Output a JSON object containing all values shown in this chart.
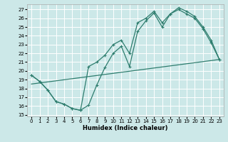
{
  "xlabel": "Humidex (Indice chaleur)",
  "bg_color": "#cce8e8",
  "grid_color": "#ffffff",
  "line_color": "#2e7d6e",
  "xlim": [
    -0.5,
    23.5
  ],
  "ylim": [
    14.8,
    27.6
  ],
  "xticks": [
    0,
    1,
    2,
    3,
    4,
    5,
    6,
    7,
    8,
    9,
    10,
    11,
    12,
    13,
    14,
    15,
    16,
    17,
    18,
    19,
    20,
    21,
    22,
    23
  ],
  "yticks": [
    15,
    16,
    17,
    18,
    19,
    20,
    21,
    22,
    23,
    24,
    25,
    26,
    27
  ],
  "curve1_x": [
    0,
    1,
    2,
    3,
    4,
    5,
    6,
    7,
    8,
    9,
    10,
    11,
    12,
    13,
    14,
    15,
    16,
    17,
    18,
    19,
    20,
    21,
    22,
    23
  ],
  "curve1_y": [
    19.5,
    18.8,
    17.8,
    16.5,
    16.2,
    15.7,
    15.5,
    16.1,
    18.4,
    20.4,
    22.0,
    22.8,
    20.5,
    24.5,
    25.7,
    26.6,
    25.0,
    26.5,
    27.2,
    26.8,
    26.2,
    25.0,
    23.5,
    21.3
  ],
  "curve2_x": [
    0,
    1,
    2,
    3,
    4,
    5,
    6,
    7,
    8,
    9,
    10,
    11,
    12,
    13,
    14,
    15,
    16,
    17,
    18,
    19,
    20,
    21,
    22,
    23
  ],
  "curve2_y": [
    19.5,
    18.8,
    17.8,
    16.5,
    16.2,
    15.7,
    15.5,
    20.5,
    21.0,
    21.8,
    23.0,
    23.5,
    22.0,
    25.5,
    26.0,
    26.8,
    25.5,
    26.5,
    27.0,
    26.5,
    26.0,
    24.8,
    23.2,
    21.3
  ],
  "trend_x": [
    0,
    23
  ],
  "trend_y": [
    18.5,
    21.3
  ]
}
